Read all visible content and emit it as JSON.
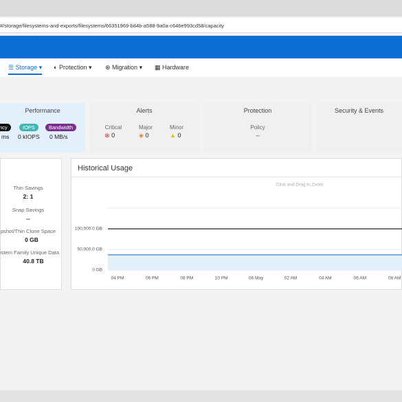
{
  "browser": {
    "url": "#/storage/filesystems-and-exports/filesystems/66351969-b84b-a588-9a0a-c646e993cd58/capacity"
  },
  "nav": {
    "items": [
      "Storage",
      "Protection",
      "Migration",
      "Hardware"
    ]
  },
  "summary": {
    "performance": {
      "title": "Performance",
      "pills": [
        "ncy",
        "IOPS",
        "Bandwidth"
      ],
      "values": [
        "ms",
        "0 kIOPS",
        "0 MB/s"
      ]
    },
    "alerts": {
      "title": "Alerts",
      "items": [
        {
          "label": "Critical",
          "count": "0"
        },
        {
          "label": "Major",
          "count": "0"
        },
        {
          "label": "Minor",
          "count": "0"
        }
      ]
    },
    "protection": {
      "title": "Protection",
      "label": "Policy",
      "value": "--"
    },
    "security": {
      "title": "Security & Events"
    }
  },
  "savings": {
    "items": [
      {
        "label": "Thin Savings",
        "value": "2: 1"
      },
      {
        "label": "Snap Savings",
        "value": "--"
      },
      {
        "label": "pshot/Thin Clone Space",
        "value": "0 GB"
      },
      {
        "label": "ystem Family Unique Data",
        "value": "40.8 TB"
      }
    ]
  },
  "chart_data": {
    "type": "line",
    "title": "Historical Usage",
    "subtitle": "Click and Drag to Zoom",
    "categories": [
      "04 PM",
      "06 PM",
      "08 PM",
      "10 PM",
      "06 May",
      "02 AM",
      "04 AM",
      "06 AM",
      "08 AM"
    ],
    "ylim": [
      0,
      150000
    ],
    "yticks": [
      {
        "value": 0,
        "label": "0 GB"
      },
      {
        "value": 50000,
        "label": "50,000.0 GB"
      },
      {
        "value": 100000,
        "label": "100,000.0 GB"
      }
    ],
    "series": [
      {
        "color": "#222222",
        "values": [
          100000,
          100000,
          100000,
          100000,
          100000,
          100000,
          100000,
          100000,
          100000
        ]
      },
      {
        "color": "#4a90d9",
        "values": [
          37000,
          37000,
          37000,
          37000,
          37000,
          37000,
          37000,
          37000,
          37000
        ],
        "fill": "#e3effa"
      }
    ],
    "grid": true
  }
}
